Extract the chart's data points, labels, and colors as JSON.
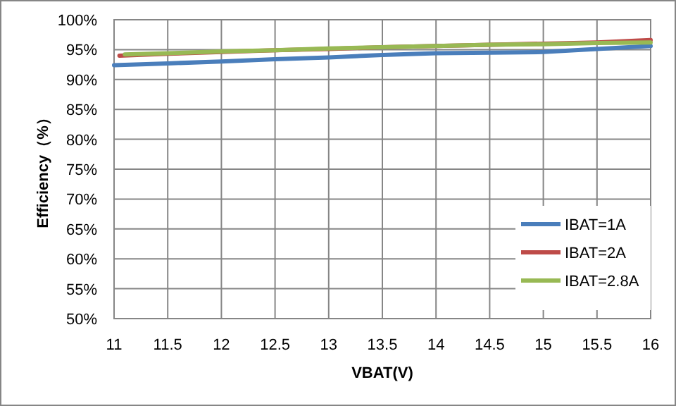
{
  "chart_data": {
    "type": "line",
    "xlabel": "VBAT(V)",
    "ylabel": "Efficiency（%）",
    "xlim": [
      11,
      16
    ],
    "xticks": [
      11,
      11.5,
      12,
      12.5,
      13,
      13.5,
      14,
      14.5,
      15,
      15.5,
      16
    ],
    "ylim": [
      50,
      100
    ],
    "yticks": [
      {
        "value": 50,
        "label": "50%"
      },
      {
        "value": 55,
        "label": "55%"
      },
      {
        "value": 60,
        "label": "60%"
      },
      {
        "value": 65,
        "label": "65%"
      },
      {
        "value": 70,
        "label": "70%"
      },
      {
        "value": 75,
        "label": "75%"
      },
      {
        "value": 80,
        "label": "80%"
      },
      {
        "value": 85,
        "label": "85%"
      },
      {
        "value": 90,
        "label": "90%"
      },
      {
        "value": 95,
        "label": "95%"
      },
      {
        "value": 100,
        "label": "100%"
      }
    ],
    "grid": true,
    "legend": "bottom right",
    "marker": "none",
    "line_style": "solid",
    "series": [
      {
        "name": "IBAT=1A",
        "color": "#4a7ebb",
        "x": [
          11,
          11.5,
          12,
          12.5,
          13,
          13.5,
          14,
          14.5,
          15,
          15.5,
          16
        ],
        "values": [
          92.4,
          92.7,
          93.0,
          93.4,
          93.7,
          94.1,
          94.4,
          94.5,
          94.6,
          95.1,
          95.6
        ]
      },
      {
        "name": "IBAT=2A",
        "color": "#be4b48",
        "x": [
          11.05,
          11.5,
          12,
          12.5,
          13,
          13.5,
          14,
          14.5,
          15,
          15.5,
          16
        ],
        "values": [
          94.0,
          94.3,
          94.6,
          94.9,
          95.1,
          95.4,
          95.6,
          95.8,
          96.0,
          96.2,
          96.6
        ]
      },
      {
        "name": "IBAT=2.8A",
        "color": "#98b954",
        "x": [
          11.1,
          11.5,
          12,
          12.5,
          13,
          13.5,
          14,
          14.5,
          15,
          15.5,
          16
        ],
        "values": [
          94.2,
          94.4,
          94.7,
          94.9,
          95.2,
          95.4,
          95.6,
          95.8,
          95.9,
          96.1,
          96.2
        ]
      }
    ]
  }
}
